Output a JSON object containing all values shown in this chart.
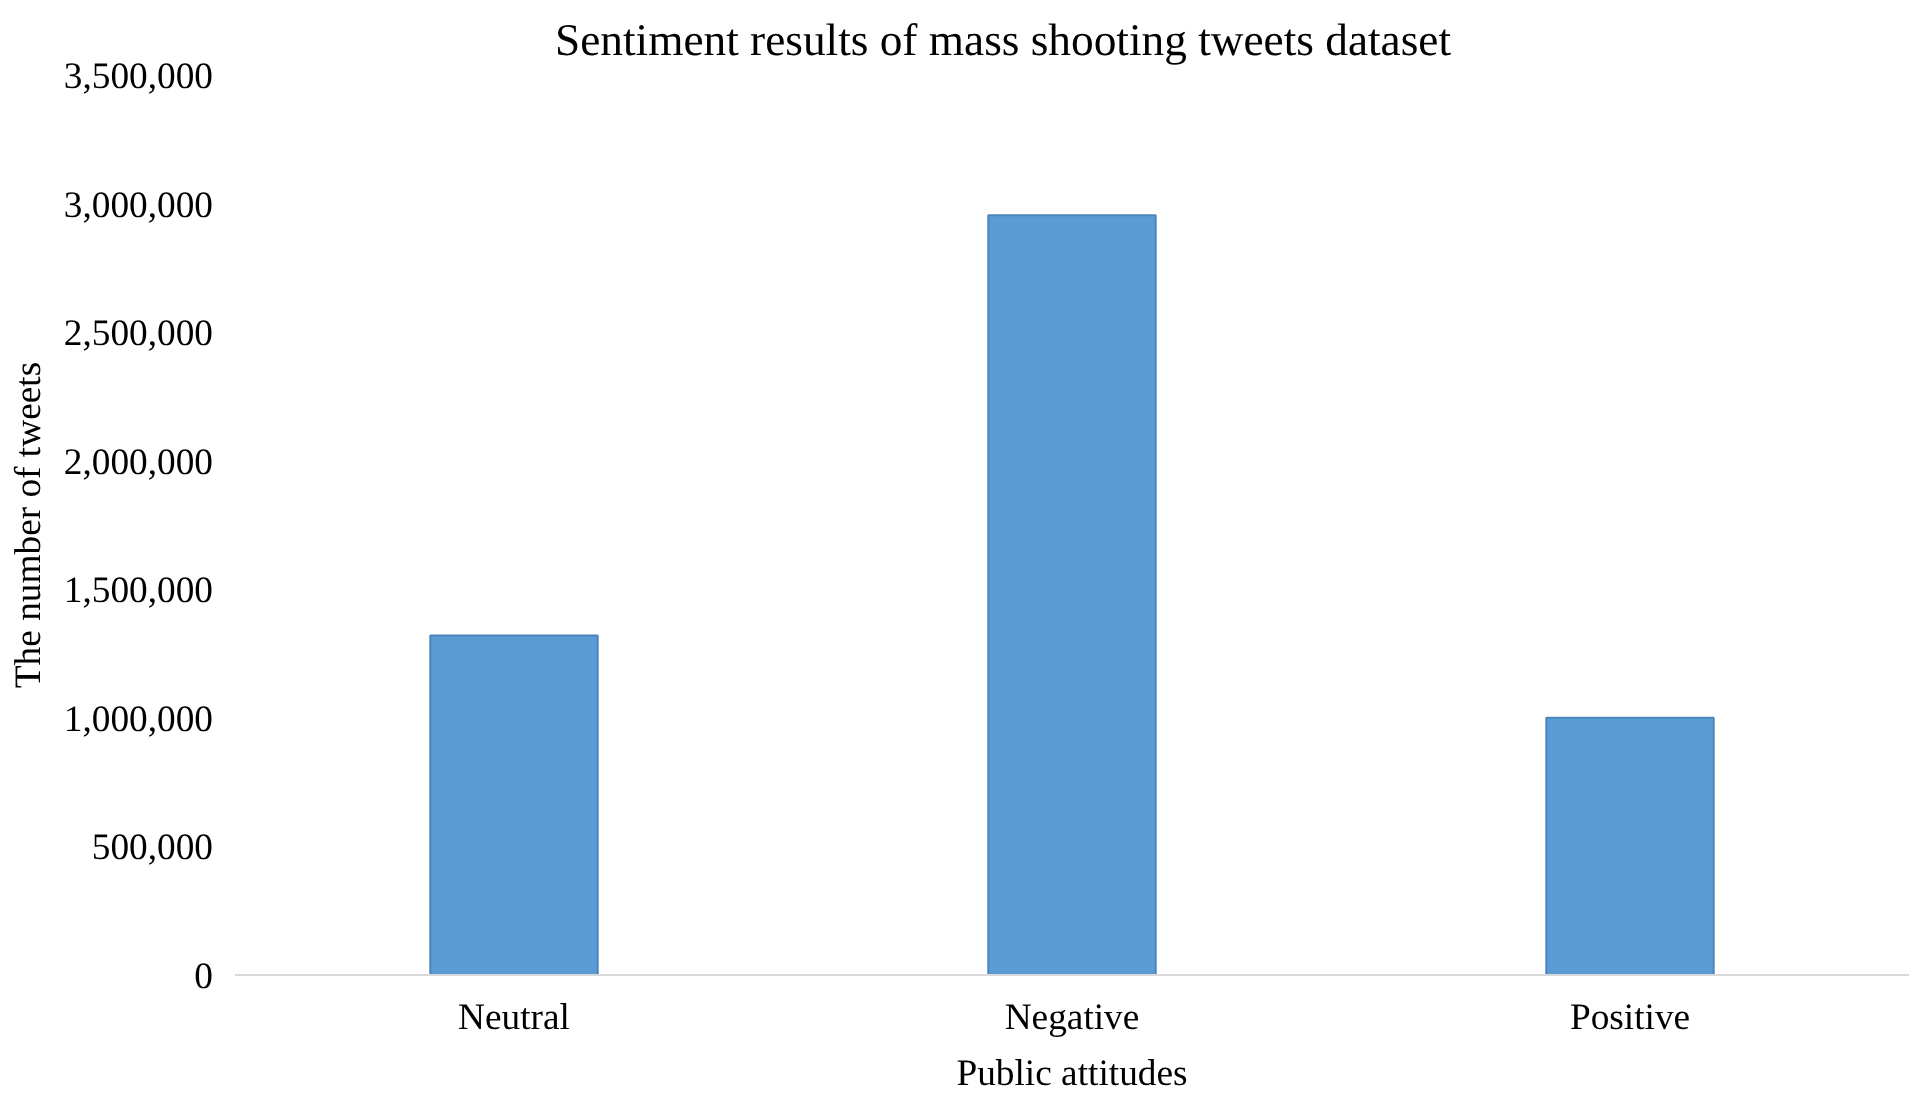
{
  "chart_data": {
    "type": "bar",
    "title": "Sentiment results of mass shooting tweets dataset",
    "xlabel": "Public attitudes",
    "ylabel": "The number of tweets",
    "categories": [
      "Neutral",
      "Negative",
      "Positive"
    ],
    "values": [
      1320000,
      2955000,
      1000000
    ],
    "color": "#5b9bd5",
    "ylim": [
      0,
      3500000
    ],
    "yticks": [
      {
        "value": 0,
        "label": "0"
      },
      {
        "value": 500000,
        "label": "500,000"
      },
      {
        "value": 1000000,
        "label": "1,000,000"
      },
      {
        "value": 1500000,
        "label": "1,500,000"
      },
      {
        "value": 2000000,
        "label": "2,000,000"
      },
      {
        "value": 2500000,
        "label": "2,500,000"
      },
      {
        "value": 3000000,
        "label": "3,000,000"
      },
      {
        "value": 3500000,
        "label": "3,500,000"
      }
    ],
    "grid": false
  }
}
